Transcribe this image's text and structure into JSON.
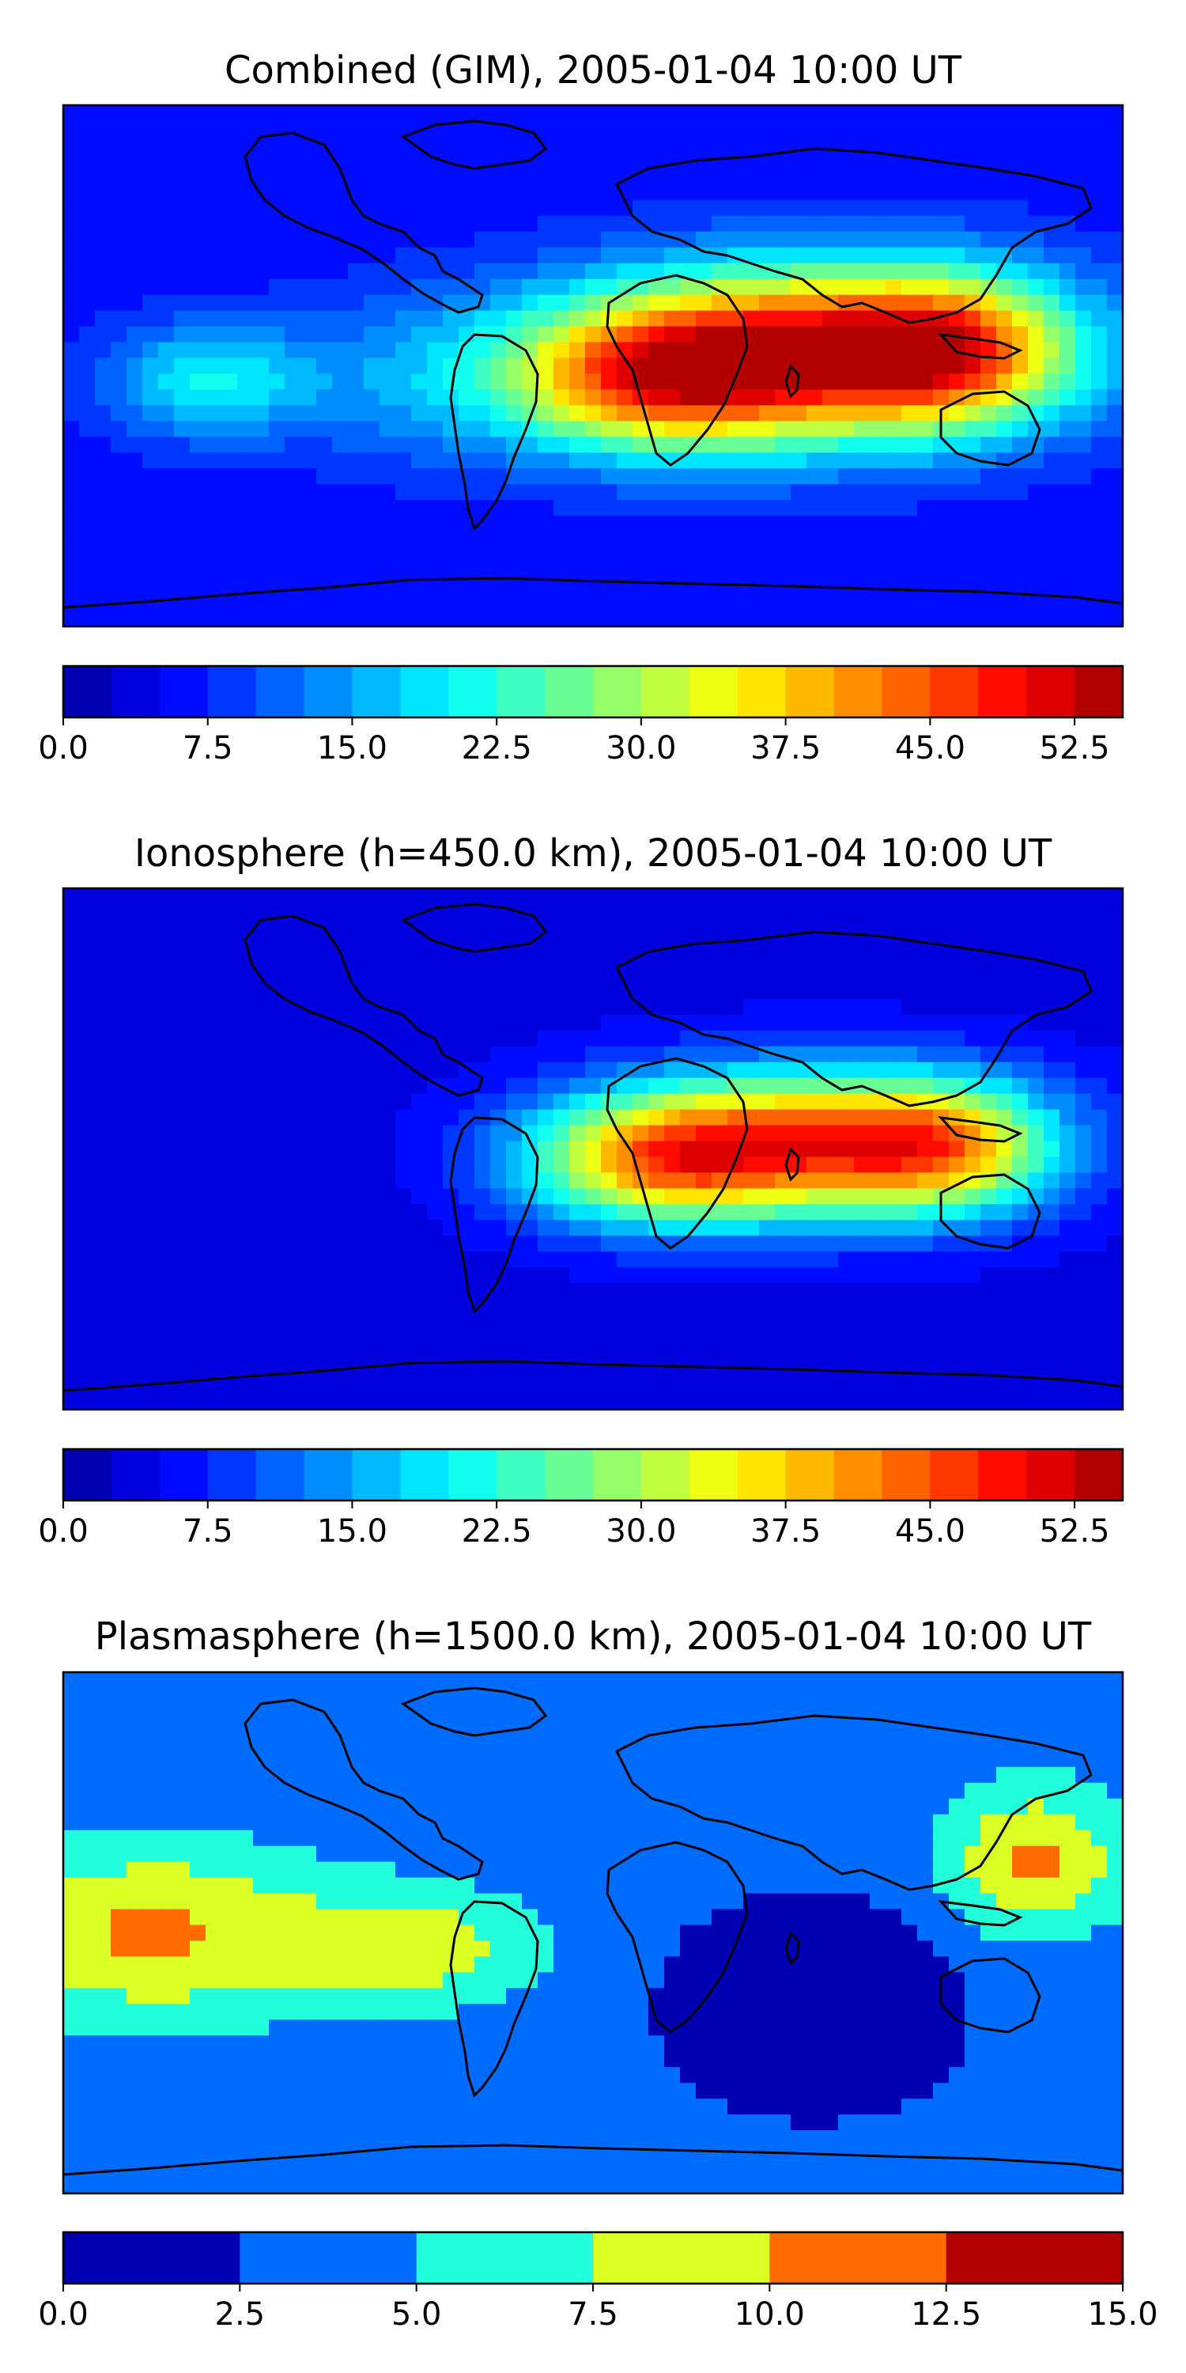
{
  "chart_data": [
    {
      "type": "heatmap",
      "title": "Combined (GIM), 2005-01-04 10:00 UT",
      "map": "world-equirectangular",
      "colormap": "jet",
      "colorbar": {
        "levels": [
          0,
          2.5,
          5,
          7.5,
          10,
          12.5,
          15,
          17.5,
          20,
          22.5,
          25,
          27.5,
          30,
          32.5,
          35,
          37.5,
          40,
          42.5,
          45,
          47.5,
          50,
          52.5,
          55
        ],
        "tick_labels": [
          "0.0",
          "7.5",
          "15.0",
          "22.5",
          "30.0",
          "37.5",
          "45.0",
          "52.5"
        ],
        "range": [
          0,
          55
        ]
      },
      "field": {
        "background": 6,
        "blobs": [
          {
            "lon": 75,
            "lat": 5,
            "value": 46,
            "rx": 80,
            "ry": 30
          },
          {
            "lon": 20,
            "lat": -5,
            "value": 33,
            "rx": 50,
            "ry": 25
          },
          {
            "lon": 120,
            "lat": 5,
            "value": 28,
            "rx": 40,
            "ry": 25
          },
          {
            "lon": -130,
            "lat": -5,
            "value": 20,
            "rx": 35,
            "ry": 20
          },
          {
            "lon": -60,
            "lat": -5,
            "value": 13,
            "rx": 45,
            "ry": 30
          }
        ]
      }
    },
    {
      "type": "heatmap",
      "title": "Ionosphere  (h=450.0 km), 2005-01-04 10:00 UT",
      "map": "world-equirectangular",
      "colormap": "jet",
      "colorbar": {
        "levels": [
          0,
          2.5,
          5,
          7.5,
          10,
          12.5,
          15,
          17.5,
          20,
          22.5,
          25,
          27.5,
          30,
          32.5,
          35,
          37.5,
          40,
          42.5,
          45,
          47.5,
          50,
          52.5,
          55
        ],
        "tick_labels": [
          "0.0",
          "7.5",
          "15.0",
          "22.5",
          "30.0",
          "37.5",
          "45.0",
          "52.5"
        ],
        "range": [
          0,
          55
        ]
      },
      "field": {
        "background": 4,
        "blobs": [
          {
            "lon": 75,
            "lat": 2,
            "value": 42,
            "rx": 70,
            "ry": 25
          },
          {
            "lon": 20,
            "lat": -5,
            "value": 28,
            "rx": 45,
            "ry": 22
          },
          {
            "lon": 120,
            "lat": 0,
            "value": 22,
            "rx": 35,
            "ry": 22
          }
        ]
      }
    },
    {
      "type": "heatmap",
      "title": "Plasmasphere (h=1500.0 km), 2005-01-04 10:00 UT",
      "map": "world-equirectangular",
      "colormap": "jet",
      "colorbar": {
        "levels": [
          0,
          2.5,
          5,
          7.5,
          10,
          12.5,
          15
        ],
        "tick_labels": [
          "0.0",
          "2.5",
          "5.0",
          "7.5",
          "10.0",
          "12.5",
          "15.0"
        ],
        "range": [
          0,
          15
        ]
      },
      "field": {
        "background": 3.5,
        "blobs": [
          {
            "lon": -150,
            "lat": 0,
            "value": 10.5,
            "rx": 60,
            "ry": 30
          },
          {
            "lon": -60,
            "lat": -5,
            "value": 9,
            "rx": 40,
            "ry": 20
          },
          {
            "lon": 150,
            "lat": 25,
            "value": 10.5,
            "rx": 30,
            "ry": 25
          },
          {
            "lon": 75,
            "lat": -25,
            "value": -3,
            "rx": 40,
            "ry": 30
          }
        ]
      }
    }
  ]
}
